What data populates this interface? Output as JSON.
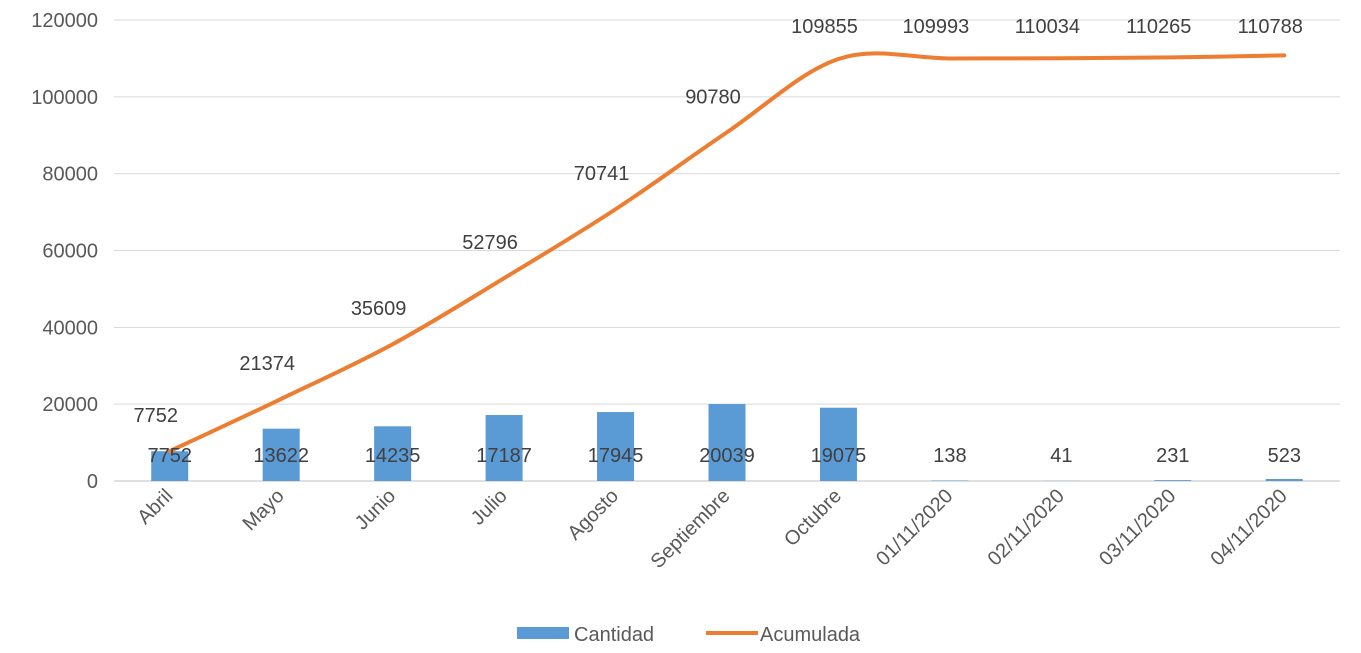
{
  "chart_data": {
    "type": "bar",
    "categories": [
      "Abril",
      "Mayo",
      "Junio",
      "Julio",
      "Agosto",
      "Septiembre",
      "Octubre",
      "01/11/2020",
      "02/11/2020",
      "03/11/2020",
      "04/11/2020"
    ],
    "series": [
      {
        "name": "Cantidad",
        "type": "bar",
        "color": "#5B9BD5",
        "values": [
          7752,
          13622,
          14235,
          17187,
          17945,
          20039,
          19075,
          138,
          41,
          231,
          523
        ],
        "labels": [
          "7752",
          "13622",
          "14235",
          "17187",
          "17945",
          "20039",
          "19075",
          "138",
          "41",
          "231",
          "523"
        ]
      },
      {
        "name": "Acumulada",
        "type": "line",
        "smooth": true,
        "color": "#ED7D31",
        "values": [
          7752,
          21374,
          35609,
          52796,
          70741,
          90780,
          109855,
          109993,
          110034,
          110265,
          110788
        ],
        "labels": [
          "7752",
          "21374",
          "35609",
          "52796",
          "70741",
          "90780",
          "109855",
          "109993",
          "110034",
          "110265",
          "110788"
        ]
      }
    ],
    "y_ticks": [
      "0",
      "20000",
      "40000",
      "60000",
      "80000",
      "100000",
      "120000"
    ],
    "ylim": [
      0,
      120000
    ],
    "grid": true,
    "legend_position": "bottom"
  }
}
